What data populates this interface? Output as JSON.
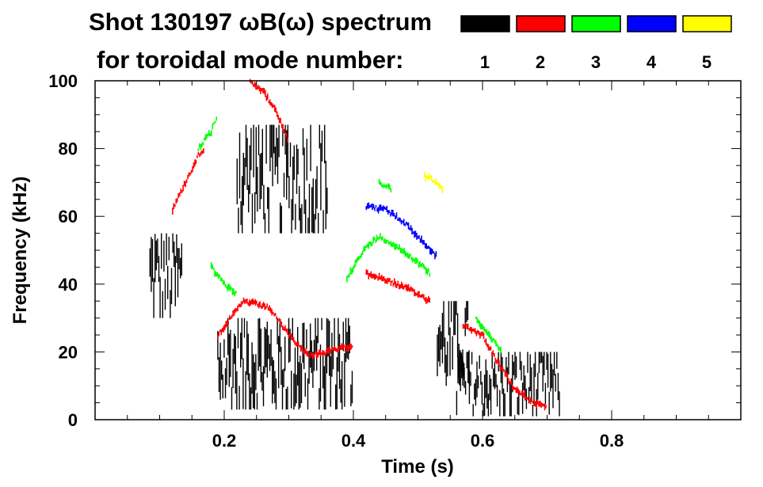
{
  "chart_data": {
    "type": "scatter",
    "title_line1": "Shot 130197 ωB(ω) spectrum",
    "title_line2": "for toroidal mode number:",
    "xlabel": "Time (s)",
    "ylabel": "Frequency (kHz)",
    "xlim": [
      0.0,
      1.0
    ],
    "ylim": [
      0,
      100
    ],
    "x_ticks": [
      0.2,
      0.4,
      0.6,
      0.8
    ],
    "x_tick_labels": [
      "0.2",
      "0.4",
      "0.6",
      "0.8"
    ],
    "y_ticks": [
      0,
      20,
      40,
      60,
      80,
      100
    ],
    "y_tick_labels": [
      "0",
      "20",
      "40",
      "60",
      "80",
      "100"
    ],
    "grid": false,
    "legend": [
      {
        "label": "1",
        "color": "#000000"
      },
      {
        "label": "2",
        "color": "#ff0000"
      },
      {
        "label": "3",
        "color": "#00ff00"
      },
      {
        "label": "4",
        "color": "#0000ff"
      },
      {
        "label": "5",
        "color": "#ffff00"
      }
    ],
    "series": [
      {
        "name": "n=1",
        "color": "#000000",
        "regions": [
          {
            "t0": 0.085,
            "t1": 0.135,
            "f0": 30,
            "f1": 55
          },
          {
            "t0": 0.19,
            "t1": 0.4,
            "f0": 3,
            "f1": 30
          },
          {
            "t0": 0.22,
            "t1": 0.36,
            "f0": 55,
            "f1": 87
          },
          {
            "t0": 0.53,
            "t1": 0.58,
            "f0": 10,
            "f1": 35
          },
          {
            "t0": 0.56,
            "t1": 0.72,
            "f0": 1,
            "f1": 20
          }
        ]
      },
      {
        "name": "n=2",
        "color": "#ff0000",
        "tracks": [
          [
            [
              0.12,
              62
            ],
            [
              0.14,
              70
            ],
            [
              0.16,
              78
            ],
            [
              0.17,
              80
            ]
          ],
          [
            [
              0.19,
              25
            ],
            [
              0.23,
              35
            ],
            [
              0.27,
              33
            ],
            [
              0.3,
              25
            ],
            [
              0.33,
              19
            ],
            [
              0.36,
              20
            ],
            [
              0.4,
              22
            ]
          ],
          [
            [
              0.24,
              100
            ],
            [
              0.26,
              97
            ],
            [
              0.28,
              91
            ],
            [
              0.3,
              82
            ]
          ],
          [
            [
              0.42,
              43
            ],
            [
              0.44,
              42
            ],
            [
              0.48,
              39
            ],
            [
              0.52,
              35
            ]
          ],
          [
            [
              0.57,
              28
            ],
            [
              0.6,
              25
            ],
            [
              0.62,
              18
            ],
            [
              0.65,
              9
            ],
            [
              0.68,
              5
            ],
            [
              0.7,
              4
            ]
          ]
        ]
      },
      {
        "name": "n=3",
        "color": "#00ff00",
        "tracks": [
          [
            [
              0.16,
              80
            ],
            [
              0.18,
              85
            ],
            [
              0.19,
              90
            ]
          ],
          [
            [
              0.18,
              45
            ],
            [
              0.2,
              40
            ],
            [
              0.22,
              37
            ]
          ],
          [
            [
              0.39,
              42
            ],
            [
              0.42,
              51
            ],
            [
              0.44,
              54
            ],
            [
              0.46,
              52
            ],
            [
              0.49,
              48
            ],
            [
              0.52,
              43
            ]
          ],
          [
            [
              0.59,
              30
            ],
            [
              0.61,
              25
            ],
            [
              0.63,
              20
            ]
          ],
          [
            [
              0.44,
              70
            ],
            [
              0.46,
              68
            ]
          ]
        ]
      },
      {
        "name": "n=4",
        "color": "#0000ff",
        "tracks": [
          [
            [
              0.42,
              63
            ],
            [
              0.45,
              62
            ],
            [
              0.48,
              58
            ],
            [
              0.5,
              54
            ],
            [
              0.53,
              48
            ]
          ]
        ]
      },
      {
        "name": "n=5",
        "color": "#ffff00",
        "tracks": [
          [
            [
              0.51,
              72
            ],
            [
              0.53,
              70
            ],
            [
              0.54,
              67
            ]
          ]
        ]
      }
    ]
  }
}
